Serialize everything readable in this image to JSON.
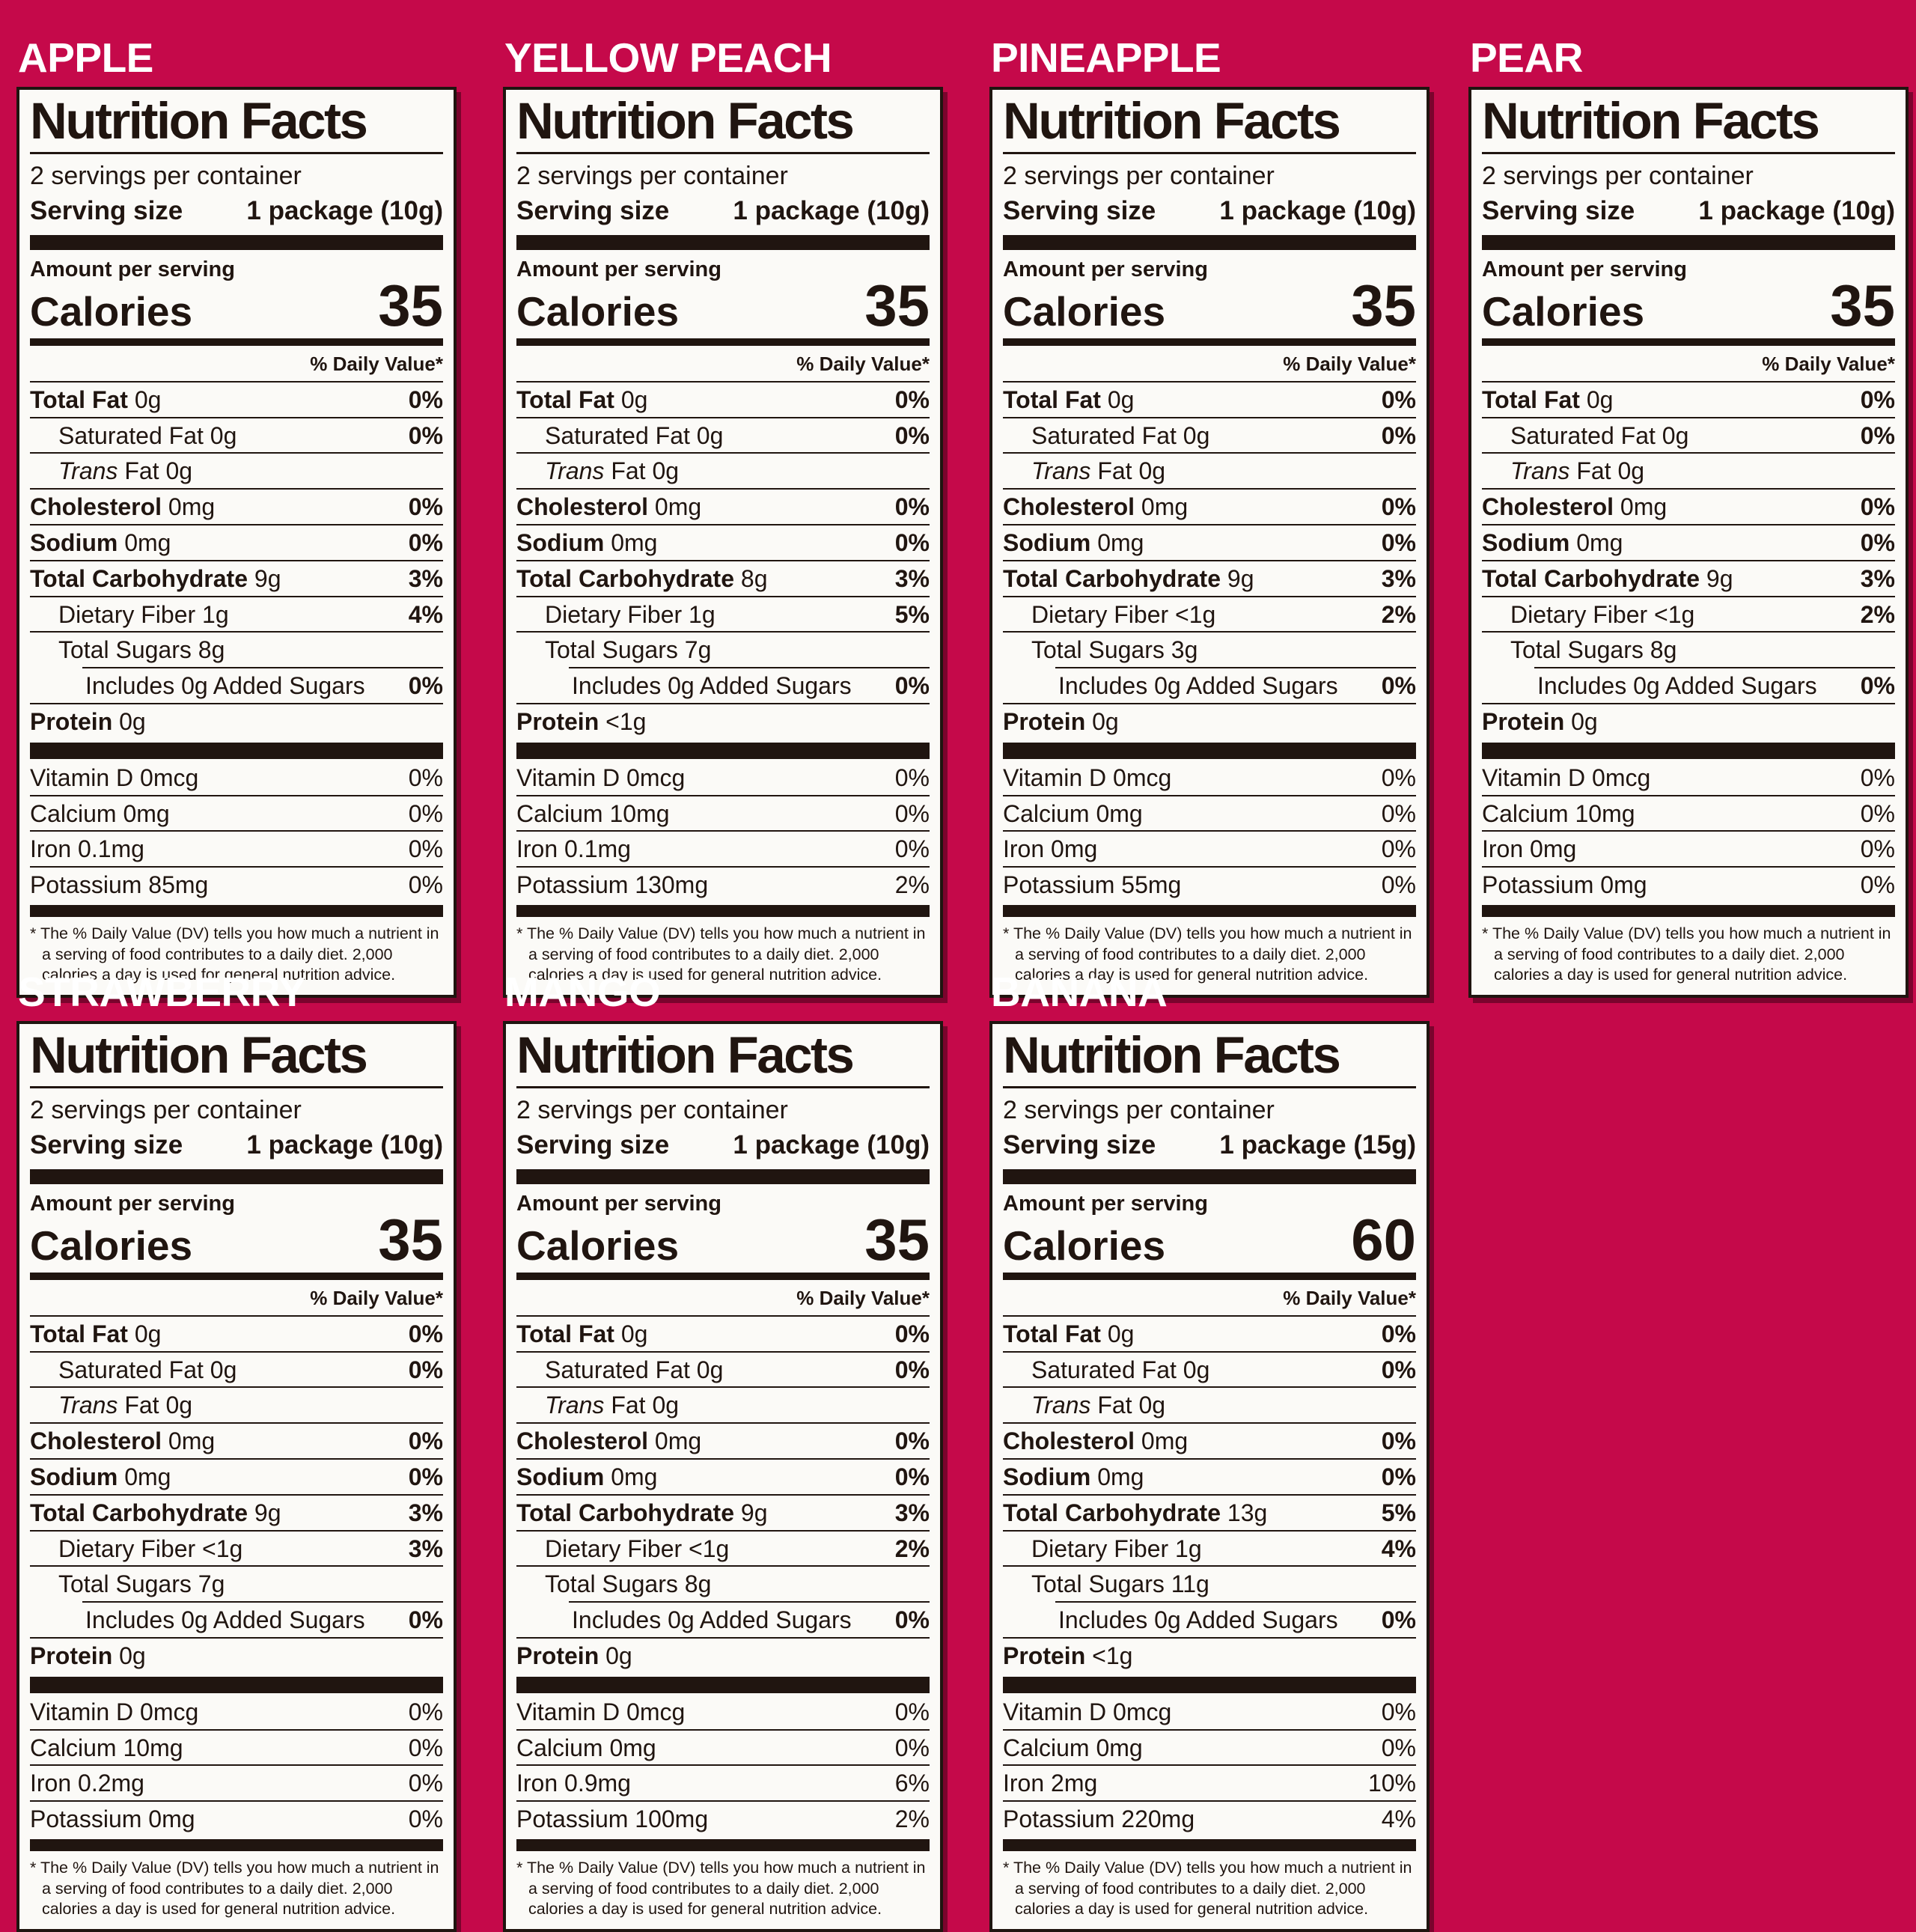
{
  "colors": {
    "background": "#C5094A",
    "label_background": "#FBFAF7",
    "ink": "#201510",
    "title_text": "#FFFFFF"
  },
  "shared": {
    "title": "Nutrition Facts",
    "servings_per_container": "2 servings per container",
    "serving_size_label": "Serving size",
    "amount_per_serving": "Amount per serving",
    "calories_label": "Calories",
    "daily_value_header": "% Daily Value*",
    "footnote": "* The % Daily Value (DV) tells you how much a nutrient in a serving of food contributes to a daily diet. 2,000 calories a day is used for general nutrition advice."
  },
  "labels": [
    {
      "fruit": "APPLE",
      "serving_size": "1 package (10g)",
      "calories": "35",
      "rows": [
        {
          "name": "Total Fat",
          "value": "0g",
          "dv": "0%",
          "bold": true,
          "bold_dv": true,
          "indent": 0
        },
        {
          "name": "Saturated Fat",
          "value": "0g",
          "dv": "0%",
          "bold": false,
          "bold_dv": true,
          "indent": 1
        },
        {
          "name": "Trans Fat",
          "value": "0g",
          "dv": "",
          "bold": false,
          "bold_dv": false,
          "indent": 1,
          "italic_first": true
        },
        {
          "name": "Cholesterol",
          "value": "0mg",
          "dv": "0%",
          "bold": true,
          "bold_dv": true,
          "indent": 0
        },
        {
          "name": "Sodium",
          "value": "0mg",
          "dv": "0%",
          "bold": true,
          "bold_dv": true,
          "indent": 0
        },
        {
          "name": "Total Carbohydrate",
          "value": "9g",
          "dv": "3%",
          "bold": true,
          "bold_dv": true,
          "indent": 0
        },
        {
          "name": "Dietary Fiber",
          "value": "1g",
          "dv": "4%",
          "bold": false,
          "bold_dv": true,
          "indent": 1
        },
        {
          "name": "Total Sugars",
          "value": "8g",
          "dv": "",
          "bold": false,
          "bold_dv": false,
          "indent": 1
        },
        {
          "name": "Includes 0g Added Sugars",
          "value": "",
          "dv": "0%",
          "bold": false,
          "bold_dv": true,
          "indent": 2,
          "inset_rule": true
        },
        {
          "name": "Protein",
          "value": "0g",
          "dv": "",
          "bold": true,
          "bold_dv": false,
          "indent": 0
        }
      ],
      "vitamins": [
        {
          "name": "Vitamin D",
          "value": "0mcg",
          "dv": "0%"
        },
        {
          "name": "Calcium",
          "value": "0mg",
          "dv": "0%"
        },
        {
          "name": "Iron",
          "value": "0.1mg",
          "dv": "0%"
        },
        {
          "name": "Potassium",
          "value": "85mg",
          "dv": "0%"
        }
      ]
    },
    {
      "fruit": "YELLOW PEACH",
      "serving_size": "1 package (10g)",
      "calories": "35",
      "rows": [
        {
          "name": "Total Fat",
          "value": "0g",
          "dv": "0%",
          "bold": true,
          "bold_dv": true,
          "indent": 0
        },
        {
          "name": "Saturated Fat",
          "value": "0g",
          "dv": "0%",
          "bold": false,
          "bold_dv": true,
          "indent": 1
        },
        {
          "name": "Trans Fat",
          "value": "0g",
          "dv": "",
          "bold": false,
          "bold_dv": false,
          "indent": 1,
          "italic_first": true
        },
        {
          "name": "Cholesterol",
          "value": "0mg",
          "dv": "0%",
          "bold": true,
          "bold_dv": true,
          "indent": 0
        },
        {
          "name": "Sodium",
          "value": "0mg",
          "dv": "0%",
          "bold": true,
          "bold_dv": true,
          "indent": 0
        },
        {
          "name": "Total Carbohydrate",
          "value": "8g",
          "dv": "3%",
          "bold": true,
          "bold_dv": true,
          "indent": 0
        },
        {
          "name": "Dietary Fiber",
          "value": "1g",
          "dv": "5%",
          "bold": false,
          "bold_dv": true,
          "indent": 1
        },
        {
          "name": "Total Sugars",
          "value": "7g",
          "dv": "",
          "bold": false,
          "bold_dv": false,
          "indent": 1
        },
        {
          "name": "Includes 0g Added Sugars",
          "value": "",
          "dv": "0%",
          "bold": false,
          "bold_dv": true,
          "indent": 2,
          "inset_rule": true
        },
        {
          "name": "Protein",
          "value": "<1g",
          "dv": "",
          "bold": true,
          "bold_dv": false,
          "indent": 0
        }
      ],
      "vitamins": [
        {
          "name": "Vitamin D",
          "value": "0mcg",
          "dv": "0%"
        },
        {
          "name": "Calcium",
          "value": "10mg",
          "dv": "0%"
        },
        {
          "name": "Iron",
          "value": "0.1mg",
          "dv": "0%"
        },
        {
          "name": "Potassium",
          "value": "130mg",
          "dv": "2%"
        }
      ]
    },
    {
      "fruit": "PINEAPPLE",
      "serving_size": "1 package (10g)",
      "calories": "35",
      "rows": [
        {
          "name": "Total Fat",
          "value": "0g",
          "dv": "0%",
          "bold": true,
          "bold_dv": true,
          "indent": 0
        },
        {
          "name": "Saturated Fat",
          "value": "0g",
          "dv": "0%",
          "bold": false,
          "bold_dv": true,
          "indent": 1
        },
        {
          "name": "Trans Fat",
          "value": "0g",
          "dv": "",
          "bold": false,
          "bold_dv": false,
          "indent": 1,
          "italic_first": true
        },
        {
          "name": "Cholesterol",
          "value": "0mg",
          "dv": "0%",
          "bold": true,
          "bold_dv": true,
          "indent": 0
        },
        {
          "name": "Sodium",
          "value": "0mg",
          "dv": "0%",
          "bold": true,
          "bold_dv": true,
          "indent": 0
        },
        {
          "name": "Total Carbohydrate",
          "value": "9g",
          "dv": "3%",
          "bold": true,
          "bold_dv": true,
          "indent": 0
        },
        {
          "name": "Dietary Fiber",
          "value": "<1g",
          "dv": "2%",
          "bold": false,
          "bold_dv": true,
          "indent": 1
        },
        {
          "name": "Total Sugars",
          "value": "3g",
          "dv": "",
          "bold": false,
          "bold_dv": false,
          "indent": 1
        },
        {
          "name": "Includes 0g Added Sugars",
          "value": "",
          "dv": "0%",
          "bold": false,
          "bold_dv": true,
          "indent": 2,
          "inset_rule": true
        },
        {
          "name": "Protein",
          "value": "0g",
          "dv": "",
          "bold": true,
          "bold_dv": false,
          "indent": 0
        }
      ],
      "vitamins": [
        {
          "name": "Vitamin D",
          "value": "0mcg",
          "dv": "0%"
        },
        {
          "name": "Calcium",
          "value": "0mg",
          "dv": "0%"
        },
        {
          "name": "Iron",
          "value": "0mg",
          "dv": "0%"
        },
        {
          "name": "Potassium",
          "value": "55mg",
          "dv": "0%"
        }
      ]
    },
    {
      "fruit": "PEAR",
      "serving_size": "1 package (10g)",
      "calories": "35",
      "rows": [
        {
          "name": "Total Fat",
          "value": "0g",
          "dv": "0%",
          "bold": true,
          "bold_dv": true,
          "indent": 0
        },
        {
          "name": "Saturated Fat",
          "value": "0g",
          "dv": "0%",
          "bold": false,
          "bold_dv": true,
          "indent": 1
        },
        {
          "name": "Trans Fat",
          "value": "0g",
          "dv": "",
          "bold": false,
          "bold_dv": false,
          "indent": 1,
          "italic_first": true
        },
        {
          "name": "Cholesterol",
          "value": "0mg",
          "dv": "0%",
          "bold": true,
          "bold_dv": true,
          "indent": 0
        },
        {
          "name": "Sodium",
          "value": "0mg",
          "dv": "0%",
          "bold": true,
          "bold_dv": true,
          "indent": 0
        },
        {
          "name": "Total Carbohydrate",
          "value": "9g",
          "dv": "3%",
          "bold": true,
          "bold_dv": true,
          "indent": 0
        },
        {
          "name": "Dietary Fiber",
          "value": "<1g",
          "dv": "2%",
          "bold": false,
          "bold_dv": true,
          "indent": 1
        },
        {
          "name": "Total Sugars",
          "value": "8g",
          "dv": "",
          "bold": false,
          "bold_dv": false,
          "indent": 1
        },
        {
          "name": "Includes 0g Added Sugars",
          "value": "",
          "dv": "0%",
          "bold": false,
          "bold_dv": true,
          "indent": 2,
          "inset_rule": true
        },
        {
          "name": "Protein",
          "value": "0g",
          "dv": "",
          "bold": true,
          "bold_dv": false,
          "indent": 0
        }
      ],
      "vitamins": [
        {
          "name": "Vitamin D",
          "value": "0mcg",
          "dv": "0%"
        },
        {
          "name": "Calcium",
          "value": "10mg",
          "dv": "0%"
        },
        {
          "name": "Iron",
          "value": "0mg",
          "dv": "0%"
        },
        {
          "name": "Potassium",
          "value": "0mg",
          "dv": "0%"
        }
      ]
    },
    {
      "fruit": "STRAWBERRY",
      "serving_size": "1 package (10g)",
      "calories": "35",
      "rows": [
        {
          "name": "Total Fat",
          "value": "0g",
          "dv": "0%",
          "bold": true,
          "bold_dv": true,
          "indent": 0
        },
        {
          "name": "Saturated Fat",
          "value": "0g",
          "dv": "0%",
          "bold": false,
          "bold_dv": true,
          "indent": 1
        },
        {
          "name": "Trans Fat",
          "value": "0g",
          "dv": "",
          "bold": false,
          "bold_dv": false,
          "indent": 1,
          "italic_first": true
        },
        {
          "name": "Cholesterol",
          "value": "0mg",
          "dv": "0%",
          "bold": true,
          "bold_dv": true,
          "indent": 0
        },
        {
          "name": "Sodium",
          "value": "0mg",
          "dv": "0%",
          "bold": true,
          "bold_dv": true,
          "indent": 0
        },
        {
          "name": "Total Carbohydrate",
          "value": "9g",
          "dv": "3%",
          "bold": true,
          "bold_dv": true,
          "indent": 0
        },
        {
          "name": "Dietary Fiber",
          "value": "<1g",
          "dv": "3%",
          "bold": false,
          "bold_dv": true,
          "indent": 1
        },
        {
          "name": "Total Sugars",
          "value": "7g",
          "dv": "",
          "bold": false,
          "bold_dv": false,
          "indent": 1
        },
        {
          "name": "Includes 0g Added Sugars",
          "value": "",
          "dv": "0%",
          "bold": false,
          "bold_dv": true,
          "indent": 2,
          "inset_rule": true
        },
        {
          "name": "Protein",
          "value": "0g",
          "dv": "",
          "bold": true,
          "bold_dv": false,
          "indent": 0
        }
      ],
      "vitamins": [
        {
          "name": "Vitamin D",
          "value": "0mcg",
          "dv": "0%"
        },
        {
          "name": "Calcium",
          "value": "10mg",
          "dv": "0%"
        },
        {
          "name": "Iron",
          "value": "0.2mg",
          "dv": "0%"
        },
        {
          "name": "Potassium",
          "value": "0mg",
          "dv": "0%"
        }
      ]
    },
    {
      "fruit": "MANGO",
      "serving_size": "1 package (10g)",
      "calories": "35",
      "rows": [
        {
          "name": "Total Fat",
          "value": "0g",
          "dv": "0%",
          "bold": true,
          "bold_dv": true,
          "indent": 0
        },
        {
          "name": "Saturated Fat",
          "value": "0g",
          "dv": "0%",
          "bold": false,
          "bold_dv": true,
          "indent": 1
        },
        {
          "name": "Trans Fat",
          "value": "0g",
          "dv": "",
          "bold": false,
          "bold_dv": false,
          "indent": 1,
          "italic_first": true
        },
        {
          "name": "Cholesterol",
          "value": "0mg",
          "dv": "0%",
          "bold": true,
          "bold_dv": true,
          "indent": 0
        },
        {
          "name": "Sodium",
          "value": "0mg",
          "dv": "0%",
          "bold": true,
          "bold_dv": true,
          "indent": 0
        },
        {
          "name": "Total Carbohydrate",
          "value": "9g",
          "dv": "3%",
          "bold": true,
          "bold_dv": true,
          "indent": 0
        },
        {
          "name": "Dietary Fiber",
          "value": "<1g",
          "dv": "2%",
          "bold": false,
          "bold_dv": true,
          "indent": 1
        },
        {
          "name": "Total Sugars",
          "value": "8g",
          "dv": "",
          "bold": false,
          "bold_dv": false,
          "indent": 1
        },
        {
          "name": "Includes 0g Added Sugars",
          "value": "",
          "dv": "0%",
          "bold": false,
          "bold_dv": true,
          "indent": 2,
          "inset_rule": true
        },
        {
          "name": "Protein",
          "value": "0g",
          "dv": "",
          "bold": true,
          "bold_dv": false,
          "indent": 0
        }
      ],
      "vitamins": [
        {
          "name": "Vitamin D",
          "value": "0mcg",
          "dv": "0%"
        },
        {
          "name": "Calcium",
          "value": "0mg",
          "dv": "0%"
        },
        {
          "name": "Iron",
          "value": "0.9mg",
          "dv": "6%"
        },
        {
          "name": "Potassium",
          "value": "100mg",
          "dv": "2%"
        }
      ]
    },
    {
      "fruit": "BANANA",
      "serving_size": "1 package (15g)",
      "calories": "60",
      "rows": [
        {
          "name": "Total Fat",
          "value": "0g",
          "dv": "0%",
          "bold": true,
          "bold_dv": true,
          "indent": 0
        },
        {
          "name": "Saturated Fat",
          "value": "0g",
          "dv": "0%",
          "bold": false,
          "bold_dv": true,
          "indent": 1
        },
        {
          "name": "Trans Fat",
          "value": "0g",
          "dv": "",
          "bold": false,
          "bold_dv": false,
          "indent": 1,
          "italic_first": true
        },
        {
          "name": "Cholesterol",
          "value": "0mg",
          "dv": "0%",
          "bold": true,
          "bold_dv": true,
          "indent": 0
        },
        {
          "name": "Sodium",
          "value": "0mg",
          "dv": "0%",
          "bold": true,
          "bold_dv": true,
          "indent": 0
        },
        {
          "name": "Total Carbohydrate",
          "value": "13g",
          "dv": "5%",
          "bold": true,
          "bold_dv": true,
          "indent": 0
        },
        {
          "name": "Dietary Fiber",
          "value": "1g",
          "dv": "4%",
          "bold": false,
          "bold_dv": true,
          "indent": 1
        },
        {
          "name": "Total Sugars",
          "value": "11g",
          "dv": "",
          "bold": false,
          "bold_dv": false,
          "indent": 1
        },
        {
          "name": "Includes 0g Added Sugars",
          "value": "",
          "dv": "0%",
          "bold": false,
          "bold_dv": true,
          "indent": 2,
          "inset_rule": true
        },
        {
          "name": "Protein",
          "value": "<1g",
          "dv": "",
          "bold": true,
          "bold_dv": false,
          "indent": 0
        }
      ],
      "vitamins": [
        {
          "name": "Vitamin D",
          "value": "0mcg",
          "dv": "0%"
        },
        {
          "name": "Calcium",
          "value": "0mg",
          "dv": "0%"
        },
        {
          "name": "Iron",
          "value": "2mg",
          "dv": "10%"
        },
        {
          "name": "Potassium",
          "value": "220mg",
          "dv": "4%"
        }
      ]
    }
  ]
}
